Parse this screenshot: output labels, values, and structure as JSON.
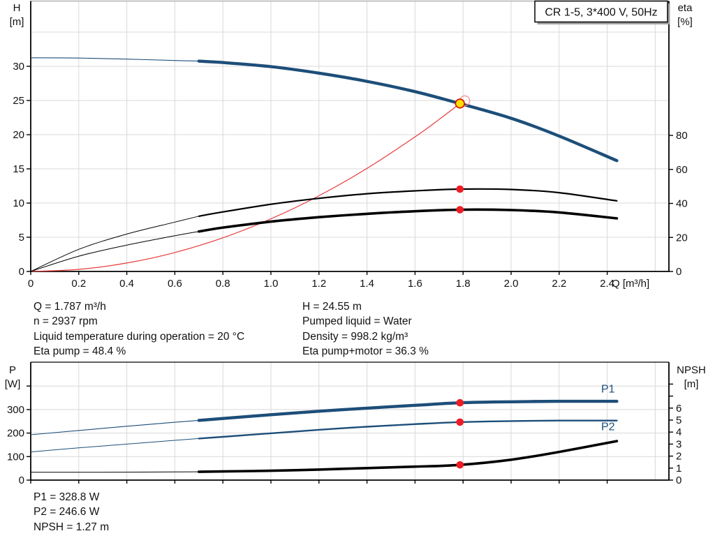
{
  "title_box": {
    "label": "CR 1-5, 3*400 V, 50Hz"
  },
  "colors": {
    "curve_blue": "#1d4e79",
    "curve_black": "#000000",
    "system_curve_red": "#e83a3a",
    "duty_dot_red": "#ee1c25",
    "duty_yellow": "#ffdf00",
    "grid": "#d8d8d8",
    "axis": "#000000",
    "top_border_gray": "#a6a6a6",
    "shadow_gray": "#a0a0a0",
    "text": "#111111"
  },
  "info_top": {
    "left": [
      "Q = 1.787 m³/h",
      "n = 2937 rpm",
      "Liquid temperature during operation = 20 °C",
      "Eta pump = 48.4 %"
    ],
    "right": [
      "H = 24.55 m",
      "Pumped liquid = Water",
      "Density = 998.2 kg/m³",
      "Eta pump+motor = 36.3 %"
    ]
  },
  "info_bottom": [
    "P1 = 328.8 W",
    "P2 = 246.6 W",
    "NPSH = 1.27 m"
  ],
  "chart_data": [
    {
      "type": "line",
      "title": "CR 1-5, 3*400 V, 50Hz",
      "x_axis": {
        "label": "Q [m³/h]",
        "min": 0,
        "max": 2.66,
        "tick_values": [
          0,
          0.2,
          0.4,
          0.6,
          0.8,
          1.0,
          1.2,
          1.4,
          1.6,
          1.8,
          2.0,
          2.2,
          2.4
        ],
        "tick_labels": [
          "0",
          "0.2",
          "0.4",
          "0.6",
          "0.8",
          "1.0",
          "1.2",
          "1.4",
          "1.6",
          "1.8",
          "2.0",
          "2.2",
          "2.4"
        ],
        "grid_values": [
          0.2,
          0.4,
          0.6,
          0.8,
          1.0,
          1.2,
          1.4,
          1.6,
          1.8,
          2.0,
          2.2,
          2.4,
          2.6
        ]
      },
      "y_left": {
        "label": [
          "H",
          "[m]"
        ],
        "min": 0,
        "max": 39.5,
        "tick_values": [
          0,
          5,
          10,
          15,
          20,
          25,
          30
        ],
        "tick_labels": [
          "0",
          "5",
          "10",
          "15",
          "20",
          "25",
          "30"
        ],
        "grid_values": [
          5,
          10,
          15,
          20,
          25,
          30,
          35
        ]
      },
      "y_right": {
        "label": [
          "eta",
          "[%]"
        ],
        "min": 0,
        "tick_values": [
          0,
          20,
          40,
          60,
          80
        ],
        "tick_labels": [
          "0",
          "20",
          "40",
          "60",
          "80"
        ]
      },
      "series": [
        {
          "name": "qh-curve",
          "axis": "left",
          "color": "blue",
          "thick_from": 0.7,
          "thin_w": 1.1,
          "thick_w": 4.4,
          "points": [
            [
              0,
              31.25
            ],
            [
              0.2,
              31.2
            ],
            [
              0.4,
              31.05
            ],
            [
              0.6,
              30.85
            ],
            [
              0.7,
              30.75
            ],
            [
              0.8,
              30.55
            ],
            [
              1.0,
              29.95
            ],
            [
              1.2,
              29.0
            ],
            [
              1.4,
              27.8
            ],
            [
              1.6,
              26.3
            ],
            [
              1.787,
              24.55
            ],
            [
              2.0,
              22.4
            ],
            [
              2.2,
              19.8
            ],
            [
              2.44,
              16.2
            ]
          ]
        },
        {
          "name": "system-curve",
          "axis": "left",
          "color": "red",
          "thick_from": null,
          "thin_w": 1.2,
          "thick_w": 1.2,
          "points": [
            [
              0,
              0
            ],
            [
              0.2,
              0.31
            ],
            [
              0.4,
              1.23
            ],
            [
              0.6,
              2.77
            ],
            [
              0.8,
              4.92
            ],
            [
              1.0,
              7.69
            ],
            [
              1.2,
              11.07
            ],
            [
              1.4,
              15.07
            ],
            [
              1.6,
              19.68
            ],
            [
              1.7,
              22.22
            ],
            [
              1.787,
              24.55
            ]
          ]
        },
        {
          "name": "eta-pump-curve",
          "axis": "right",
          "color": "black",
          "thick_from": 0.7,
          "thin_w": 1.0,
          "thick_w": 2.2,
          "points": [
            [
              0,
              0
            ],
            [
              0.2,
              13
            ],
            [
              0.4,
              22
            ],
            [
              0.6,
              29
            ],
            [
              0.7,
              32.5
            ],
            [
              0.8,
              35
            ],
            [
              1.0,
              39.5
            ],
            [
              1.2,
              43
            ],
            [
              1.4,
              45.7
            ],
            [
              1.6,
              47.4
            ],
            [
              1.787,
              48.4
            ],
            [
              2.0,
              48.2
            ],
            [
              2.2,
              46.3
            ],
            [
              2.44,
              41.5
            ]
          ]
        },
        {
          "name": "eta-pump-motor-curve",
          "axis": "right",
          "color": "black",
          "thick_from": 0.7,
          "thin_w": 1.0,
          "thick_w": 3.6,
          "points": [
            [
              0,
              0
            ],
            [
              0.2,
              9
            ],
            [
              0.4,
              15.5
            ],
            [
              0.6,
              21
            ],
            [
              0.7,
              23.5
            ],
            [
              0.8,
              25.8
            ],
            [
              1.0,
              29.3
            ],
            [
              1.2,
              31.9
            ],
            [
              1.4,
              33.9
            ],
            [
              1.6,
              35.4
            ],
            [
              1.787,
              36.3
            ],
            [
              2.0,
              36.1
            ],
            [
              2.2,
              34.7
            ],
            [
              2.44,
              31.2
            ]
          ]
        }
      ],
      "duty_points": [
        {
          "name": "duty-point-qh",
          "marker": "yellow",
          "axis": "left",
          "q": 1.787,
          "value": 24.55
        },
        {
          "name": "duty-point-eta-pump",
          "marker": "red",
          "axis": "right",
          "q": 1.787,
          "value": 48.4
        },
        {
          "name": "duty-point-eta-pump-motor",
          "marker": "red",
          "axis": "right",
          "q": 1.787,
          "value": 36.3
        }
      ]
    },
    {
      "type": "line",
      "x_axis": {
        "label": "",
        "min": 0,
        "max": 2.66,
        "tick_values": [
          0,
          0.2,
          0.4,
          0.6,
          0.8,
          1.0,
          1.2,
          1.4,
          1.6,
          1.8,
          2.0,
          2.2,
          2.4
        ],
        "tick_labels": [],
        "grid_values": [
          0.2,
          0.4,
          0.6,
          0.8,
          1.0,
          1.2,
          1.4,
          1.6,
          1.8,
          2.0,
          2.2,
          2.4,
          2.6
        ]
      },
      "y_left": {
        "label": [
          "P",
          "[W]"
        ],
        "min": 0,
        "max": 500,
        "tick_values": [
          0,
          100,
          200,
          300,
          400
        ],
        "tick_labels": [
          "0",
          "100",
          "200",
          "300",
          ""
        ],
        "grid_values": [
          100,
          200,
          300,
          400
        ]
      },
      "y_right": {
        "label": [
          "NPSH",
          "[m]"
        ],
        "min": 0,
        "tick_values": [
          0,
          1,
          2,
          3,
          4,
          5,
          6,
          7,
          8
        ],
        "tick_labels": [
          "0",
          "1",
          "2",
          "3",
          "4",
          "5",
          "6",
          "",
          ""
        ]
      },
      "series": [
        {
          "name": "p1-curve",
          "axis": "left",
          "color": "blue",
          "thick_from": 0.7,
          "thin_w": 1.1,
          "thick_w": 4.4,
          "points": [
            [
              0,
              193
            ],
            [
              0.2,
              211
            ],
            [
              0.4,
              229
            ],
            [
              0.6,
              246
            ],
            [
              0.7,
              254
            ],
            [
              0.8,
              262
            ],
            [
              1.0,
              278
            ],
            [
              1.2,
              293
            ],
            [
              1.4,
              306
            ],
            [
              1.6,
              318
            ],
            [
              1.787,
              328.8
            ],
            [
              2.0,
              333
            ],
            [
              2.2,
              335
            ],
            [
              2.44,
              335
            ]
          ]
        },
        {
          "name": "p2-curve",
          "axis": "left",
          "color": "blue",
          "thick_from": 0.7,
          "thin_w": 1.0,
          "thick_w": 2.4,
          "points": [
            [
              0,
              120
            ],
            [
              0.2,
              137
            ],
            [
              0.4,
              153
            ],
            [
              0.6,
              169
            ],
            [
              0.7,
              177
            ],
            [
              0.8,
              184
            ],
            [
              1.0,
              199
            ],
            [
              1.2,
              214
            ],
            [
              1.4,
              227
            ],
            [
              1.6,
              238
            ],
            [
              1.787,
              246.6
            ],
            [
              2.0,
              251
            ],
            [
              2.2,
              253
            ],
            [
              2.44,
              253
            ]
          ]
        },
        {
          "name": "npsh-curve",
          "axis": "right",
          "color": "black",
          "thick_from": 0.7,
          "thin_w": 1.0,
          "thick_w": 3.6,
          "points": [
            [
              0,
              0.65
            ],
            [
              0.2,
              0.65
            ],
            [
              0.4,
              0.66
            ],
            [
              0.6,
              0.68
            ],
            [
              0.7,
              0.69
            ],
            [
              0.8,
              0.72
            ],
            [
              1.0,
              0.78
            ],
            [
              1.2,
              0.88
            ],
            [
              1.4,
              1.0
            ],
            [
              1.6,
              1.12
            ],
            [
              1.787,
              1.27
            ],
            [
              2.0,
              1.7
            ],
            [
              2.2,
              2.35
            ],
            [
              2.44,
              3.25
            ]
          ]
        }
      ],
      "duty_points": [
        {
          "name": "duty-point-p1",
          "marker": "red",
          "axis": "left",
          "q": 1.787,
          "value": 328.8
        },
        {
          "name": "duty-point-p2",
          "marker": "red",
          "axis": "left",
          "q": 1.787,
          "value": 246.6
        },
        {
          "name": "duty-point-npsh",
          "marker": "red",
          "axis": "right",
          "q": 1.787,
          "value": 1.27
        }
      ],
      "annotations": [
        {
          "name": "p1-label",
          "text": "P1",
          "q": 2.375,
          "axis": "left",
          "value": 372
        },
        {
          "name": "p2-label",
          "text": "P2",
          "q": 2.375,
          "axis": "left",
          "value": 212
        }
      ]
    }
  ]
}
